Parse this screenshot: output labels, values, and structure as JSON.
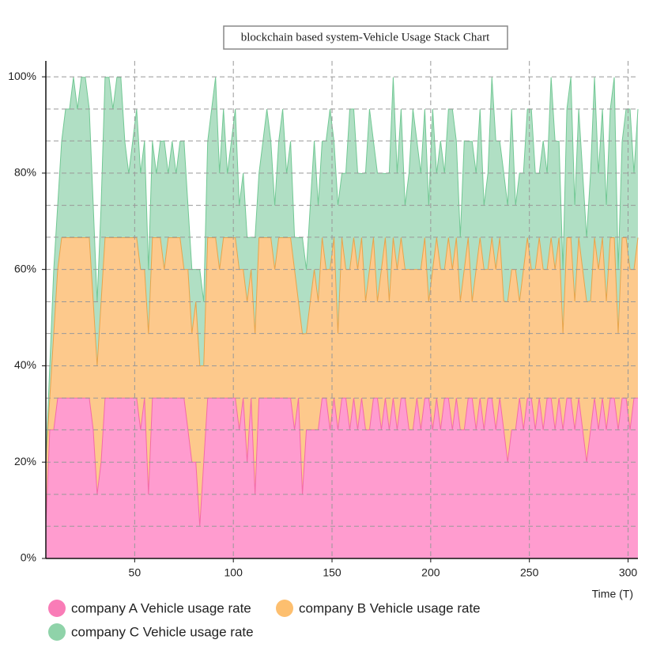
{
  "chart_data": {
    "type": "stacked-area",
    "title": "blockchain based system-Vehicle Usage Stack Chart",
    "x_label": "Time (T)",
    "legend_position": "bottom",
    "grid": true,
    "xlim": [
      5,
      305
    ],
    "xticks": [
      50,
      100,
      150,
      200,
      250,
      300
    ],
    "ylim": [
      0,
      103.3
    ],
    "yticks": [
      {
        "value": 0,
        "label": "0%"
      },
      {
        "value": 20,
        "label": "20%"
      },
      {
        "value": 40,
        "label": "40%"
      },
      {
        "value": 60,
        "label": "60%"
      },
      {
        "value": 80,
        "label": "80%"
      },
      {
        "value": 100,
        "label": "100%"
      }
    ],
    "ygrid": [
      6.7,
      13.3,
      20,
      26.7,
      33.3,
      40,
      46.7,
      53.3,
      60,
      66.7,
      73.3,
      80,
      86.7,
      93.3,
      100
    ],
    "x": [
      5,
      7,
      9,
      11,
      13,
      15,
      17,
      19,
      21,
      23,
      25,
      27,
      29,
      31,
      33,
      35,
      37,
      39,
      41,
      43,
      45,
      47,
      49,
      51,
      53,
      55,
      57,
      59,
      61,
      63,
      65,
      67,
      69,
      71,
      73,
      75,
      77,
      79,
      81,
      83,
      85,
      87,
      89,
      91,
      93,
      95,
      97,
      99,
      101,
      103,
      105,
      107,
      109,
      111,
      113,
      115,
      117,
      119,
      121,
      123,
      125,
      127,
      129,
      131,
      133,
      135,
      137,
      139,
      141,
      143,
      145,
      147,
      149,
      151,
      153,
      155,
      157,
      159,
      161,
      163,
      165,
      167,
      169,
      171,
      173,
      175,
      177,
      179,
      181,
      183,
      185,
      187,
      189,
      191,
      193,
      195,
      197,
      199,
      201,
      203,
      205,
      207,
      209,
      211,
      213,
      215,
      217,
      219,
      221,
      223,
      225,
      227,
      229,
      231,
      233,
      235,
      237,
      239,
      241,
      243,
      245,
      247,
      249,
      251,
      253,
      255,
      257,
      259,
      261,
      263,
      265,
      267,
      269,
      271,
      273,
      275,
      277,
      279,
      281,
      283,
      285,
      287,
      289,
      291,
      293,
      295,
      297,
      299,
      301,
      303,
      305
    ],
    "series": [
      {
        "name": "company A Vehicle usage rate",
        "color": "#f97cb7",
        "fill": "#ff9ccf",
        "stroke": "#f46aa8",
        "values": [
          6.7,
          26.7,
          26.7,
          33.3,
          33.3,
          33.3,
          33.3,
          33.3,
          33.3,
          33.3,
          33.3,
          33.3,
          26.7,
          13.3,
          20,
          33.3,
          33.3,
          33.3,
          33.3,
          33.3,
          33.3,
          33.3,
          33.3,
          33.3,
          26.7,
          33.3,
          13.3,
          33.3,
          33.3,
          33.3,
          33.3,
          33.3,
          33.3,
          33.3,
          33.3,
          33.3,
          26.7,
          20,
          20,
          6.7,
          20,
          33.3,
          33.3,
          33.3,
          33.3,
          33.3,
          33.3,
          33.3,
          33.3,
          26.7,
          33.3,
          20,
          33.3,
          13.3,
          33.3,
          33.3,
          33.3,
          33.3,
          33.3,
          33.3,
          33.3,
          33.3,
          33.3,
          26.7,
          33.3,
          13.3,
          26.7,
          26.7,
          26.7,
          26.7,
          33.3,
          33.3,
          26.7,
          33.3,
          26.7,
          33.3,
          33.3,
          26.7,
          33.3,
          26.7,
          33.3,
          26.7,
          26.7,
          33.3,
          33.3,
          26.7,
          33.3,
          26.7,
          33.3,
          26.7,
          33.3,
          33.3,
          26.7,
          26.7,
          33.3,
          26.7,
          33.3,
          33.3,
          26.7,
          33.3,
          26.7,
          33.3,
          33.3,
          26.7,
          33.3,
          26.7,
          26.7,
          33.3,
          33.3,
          26.7,
          33.3,
          26.7,
          33.3,
          33.3,
          26.7,
          33.3,
          26.7,
          20,
          26.7,
          26.7,
          33.3,
          26.7,
          33.3,
          33.3,
          26.7,
          33.3,
          26.7,
          33.3,
          33.3,
          26.7,
          33.3,
          26.7,
          33.3,
          33.3,
          26.7,
          33.3,
          26.7,
          20,
          26.7,
          33.3,
          26.7,
          33.3,
          26.7,
          33.3,
          33.3,
          26.7,
          33.3,
          33.3,
          26.7,
          33.3,
          33.3
        ]
      },
      {
        "name": "company B Vehicle usage rate",
        "color": "#fdbf6f",
        "fill": "#fdc98c",
        "stroke": "#e8a44a",
        "values": [
          13.3,
          6.7,
          20,
          26.7,
          33.3,
          33.3,
          33.3,
          33.3,
          33.3,
          33.3,
          33.3,
          33.3,
          26.7,
          26.7,
          33.3,
          33.3,
          33.3,
          33.3,
          33.3,
          33.3,
          33.3,
          33.3,
          33.3,
          33.3,
          33.3,
          26.7,
          33.3,
          33.3,
          33.3,
          33.3,
          26.7,
          33.3,
          33.3,
          33.3,
          33.3,
          26.7,
          33.3,
          26.7,
          33.3,
          33.3,
          20,
          33.3,
          33.3,
          33.3,
          26.7,
          33.3,
          33.3,
          33.3,
          33.3,
          33.3,
          26.7,
          33.3,
          26.7,
          33.3,
          33.3,
          33.3,
          33.3,
          33.3,
          26.7,
          33.3,
          33.3,
          33.3,
          33.3,
          33.3,
          20,
          33.3,
          20,
          26.7,
          33.3,
          26.7,
          33.3,
          26.7,
          33.3,
          33.3,
          20,
          33.3,
          26.7,
          33.3,
          33.3,
          33.3,
          33.3,
          26.7,
          33.3,
          33.3,
          20,
          33.3,
          33.3,
          26.7,
          33.3,
          33.3,
          33.3,
          26.7,
          33.3,
          33.3,
          26.7,
          33.3,
          33.3,
          20,
          33.3,
          33.3,
          33.3,
          26.7,
          33.3,
          33.3,
          33.3,
          26.7,
          33.3,
          33.3,
          20,
          33.3,
          33.3,
          33.3,
          26.7,
          33.3,
          33.3,
          33.3,
          26.7,
          33.3,
          33.3,
          33.3,
          20,
          33.3,
          33.3,
          26.7,
          33.3,
          33.3,
          33.3,
          26.7,
          33.3,
          33.3,
          33.3,
          20,
          33.3,
          33.3,
          26.7,
          33.3,
          33.3,
          33.3,
          26.7,
          33.3,
          33.3,
          33.3,
          26.7,
          33.3,
          33.3,
          20,
          33.3,
          33.3,
          33.3,
          26.7,
          33.3
        ]
      },
      {
        "name": "company C Vehicle usage rate",
        "color": "#8fd3a9",
        "fill": "#b0dfc4",
        "stroke": "#72c894",
        "values": [
          0,
          6.7,
          13.3,
          13.3,
          20,
          26.7,
          26.7,
          33.3,
          26.7,
          33.3,
          33.3,
          26.7,
          20,
          13.3,
          20,
          33.3,
          33.3,
          26.7,
          33.3,
          33.3,
          20,
          13.3,
          20,
          26.7,
          20,
          26.7,
          13.3,
          20,
          13.3,
          20,
          26.7,
          13.3,
          20,
          13.3,
          20,
          26.7,
          13.3,
          13.3,
          6.7,
          20,
          13.3,
          20,
          26.7,
          33.3,
          20,
          26.7,
          13.3,
          20,
          26.7,
          13.3,
          20,
          13.3,
          6.7,
          20,
          13.3,
          20,
          26.7,
          20,
          13.3,
          20,
          26.7,
          13.3,
          20,
          6.7,
          13.3,
          20,
          13.3,
          20,
          26.7,
          20,
          20,
          26.7,
          33.3,
          20,
          26.7,
          13.3,
          20,
          33.3,
          26.7,
          20,
          13.3,
          26.7,
          33.3,
          20,
          26.7,
          20,
          13.3,
          26.7,
          33.3,
          20,
          26.7,
          13.3,
          20,
          33.3,
          26.7,
          20,
          26.7,
          20,
          33.3,
          13.3,
          26.7,
          20,
          26.7,
          33.3,
          20,
          13.3,
          26.7,
          20,
          33.3,
          20,
          26.7,
          13.3,
          20,
          33.3,
          26.7,
          20,
          26.7,
          20,
          33.3,
          13.3,
          26.7,
          20,
          26.7,
          33.3,
          20,
          13.3,
          26.7,
          20,
          33.3,
          26.7,
          20,
          13.3,
          26.7,
          33.3,
          20,
          26.7,
          20,
          13.3,
          26.7,
          33.3,
          20,
          26.7,
          20,
          26.7,
          33.3,
          13.3,
          20,
          26.7,
          33.3,
          20,
          26.7
        ]
      }
    ]
  }
}
